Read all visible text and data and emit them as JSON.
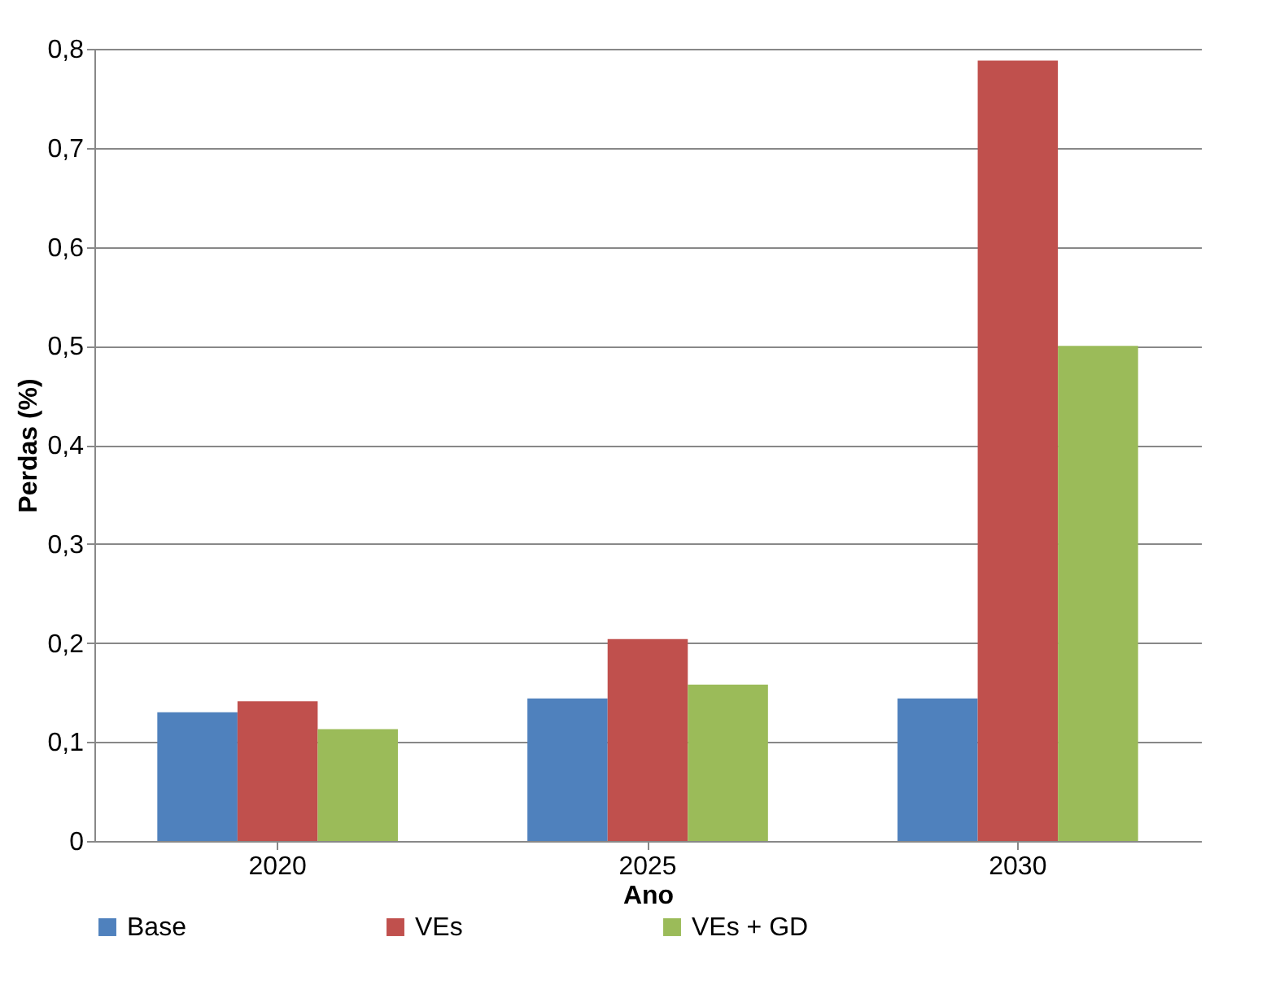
{
  "chart_data": {
    "type": "bar",
    "xlabel": "Ano",
    "ylabel": "Perdas (%)",
    "categories": [
      "2020",
      "2025",
      "2030"
    ],
    "series": [
      {
        "name": "Base",
        "color": "#4f81bd",
        "values": [
          0.13,
          0.144,
          0.144
        ]
      },
      {
        "name": "VEs",
        "color": "#c0504d",
        "values": [
          0.141,
          0.204,
          0.788
        ]
      },
      {
        "name": "VEs + GD",
        "color": "#9bbb59",
        "values": [
          0.113,
          0.158,
          0.5
        ]
      }
    ],
    "ylim": [
      0,
      0.8
    ],
    "yticks": [
      {
        "value": 0,
        "label": "0"
      },
      {
        "value": 0.1,
        "label": "0,1"
      },
      {
        "value": 0.2,
        "label": "0,2"
      },
      {
        "value": 0.3,
        "label": "0,3"
      },
      {
        "value": 0.4,
        "label": "0,4"
      },
      {
        "value": 0.5,
        "label": "0,5"
      },
      {
        "value": 0.6,
        "label": "0,6"
      },
      {
        "value": 0.7,
        "label": "0,7"
      },
      {
        "value": 0.8,
        "label": "0,8"
      }
    ],
    "grid": "y",
    "legend": "bottom"
  }
}
